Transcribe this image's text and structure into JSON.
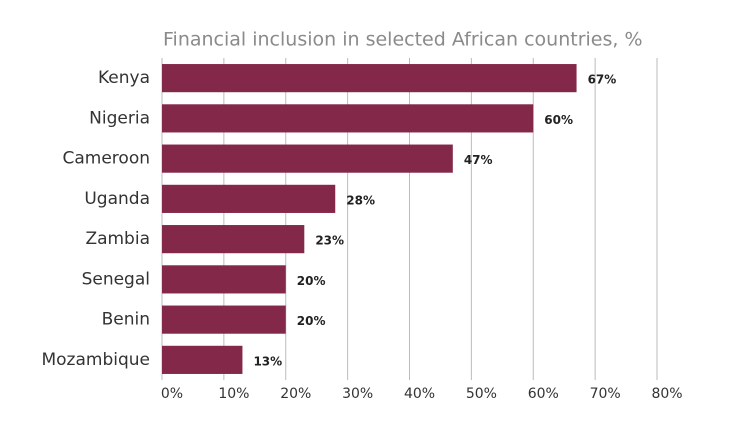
{
  "chart_data": {
    "type": "hbar",
    "title": "Financial inclusion in selected African countries, %",
    "categories": [
      "Kenya",
      "Nigeria",
      "Cameroon",
      "Uganda",
      "Zambia",
      "Senegal",
      "Benin",
      "Mozambique"
    ],
    "values": [
      67,
      60,
      47,
      28,
      23,
      20,
      20,
      13
    ],
    "value_labels": [
      "67%",
      "60%",
      "47%",
      "28%",
      "23%",
      "20%",
      "20%",
      "13%"
    ],
    "color": "#84284a",
    "xlim": [
      0,
      80
    ],
    "xticks": [
      {
        "value": 0,
        "label": "0%"
      },
      {
        "value": 10,
        "label": "10%"
      },
      {
        "value": 20,
        "label": "20%"
      },
      {
        "value": 30,
        "label": "30%"
      },
      {
        "value": 40,
        "label": "40%"
      },
      {
        "value": 50,
        "label": "50%"
      },
      {
        "value": 60,
        "label": "60%"
      },
      {
        "value": 70,
        "label": "70%"
      },
      {
        "value": 80,
        "label": "80%"
      }
    ],
    "grid": true
  }
}
